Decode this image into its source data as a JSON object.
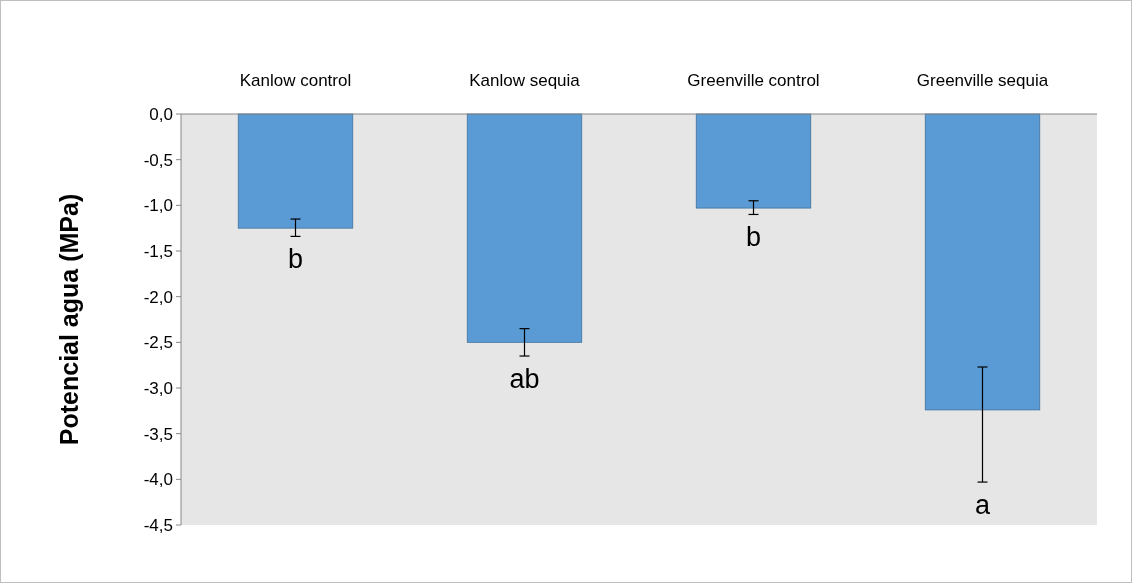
{
  "chart_data": {
    "type": "bar",
    "ylabel": "Potencial agua (MPa)",
    "categories": [
      "Kanlow control",
      "Kanlow sequia",
      "Greenville control",
      "Greenville sequia"
    ],
    "values": [
      -1.25,
      -2.5,
      -1.03,
      -3.24
    ],
    "errors": [
      [
        -1.34,
        -1.15
      ],
      [
        -2.65,
        -2.35
      ],
      [
        -1.1,
        -0.95
      ],
      [
        -4.03,
        -2.77
      ]
    ],
    "color": "#5b9bd5",
    "ylim": [
      -4.5,
      0
    ],
    "yticks": [
      {
        "value": 0,
        "label": "0,0"
      },
      {
        "value": -0.5,
        "label": "-0,5"
      },
      {
        "value": -1,
        "label": "-1,0"
      },
      {
        "value": -1.5,
        "label": "-1,5"
      },
      {
        "value": -2,
        "label": "-2,0"
      },
      {
        "value": -2.5,
        "label": "-2,5"
      },
      {
        "value": -3,
        "label": "-3,0"
      },
      {
        "value": -3.5,
        "label": "-3,5"
      },
      {
        "value": -4,
        "label": "-4,0"
      },
      {
        "value": -4.5,
        "label": "-4,5"
      }
    ],
    "annotations": [
      "b",
      "ab",
      "b",
      "a"
    ],
    "grid": false
  }
}
